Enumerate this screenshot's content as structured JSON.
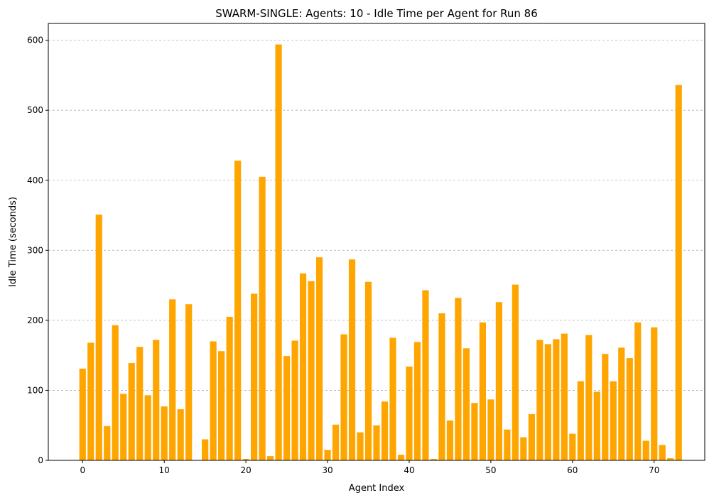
{
  "chart_data": {
    "type": "bar",
    "title": "SWARM-SINGLE: Agents: 10 - Idle Time per Agent for Run 86",
    "xlabel": "Agent Index",
    "ylabel": "Idle Time (seconds)",
    "x": [
      0,
      1,
      2,
      3,
      4,
      5,
      6,
      7,
      8,
      9,
      10,
      11,
      12,
      13,
      14,
      15,
      16,
      17,
      18,
      19,
      20,
      21,
      22,
      23,
      24,
      25,
      26,
      27,
      28,
      29,
      30,
      31,
      32,
      33,
      34,
      35,
      36,
      37,
      38,
      39,
      40,
      41,
      42,
      43,
      44,
      45,
      46,
      47,
      48,
      49,
      50,
      51,
      52,
      53,
      54,
      55,
      56,
      57,
      58,
      59,
      60,
      61,
      62,
      63,
      64,
      65,
      66,
      67,
      68,
      69,
      70,
      71,
      72,
      73
    ],
    "values": [
      131,
      168,
      351,
      49,
      193,
      95,
      139,
      162,
      93,
      172,
      77,
      230,
      73,
      223,
      0,
      30,
      170,
      156,
      205,
      428,
      2,
      238,
      405,
      6,
      594,
      149,
      171,
      267,
      256,
      290,
      15,
      51,
      180,
      287,
      40,
      255,
      50,
      84,
      175,
      8,
      134,
      169,
      243,
      2,
      210,
      57,
      232,
      160,
      82,
      197,
      87,
      226,
      44,
      251,
      33,
      66,
      172,
      166,
      173,
      181,
      38,
      113,
      179,
      98,
      152,
      113,
      161,
      146,
      197,
      28,
      190,
      22,
      3,
      536
    ],
    "xticks": [
      0,
      10,
      20,
      30,
      40,
      50,
      60,
      70
    ],
    "yticks": [
      0,
      100,
      200,
      300,
      400,
      500,
      600
    ],
    "xlim": [
      -4.2,
      76.2
    ],
    "ylim": [
      0,
      624
    ],
    "bar_color": "#FFA500",
    "grid": "y-dashed",
    "legend": "none"
  }
}
